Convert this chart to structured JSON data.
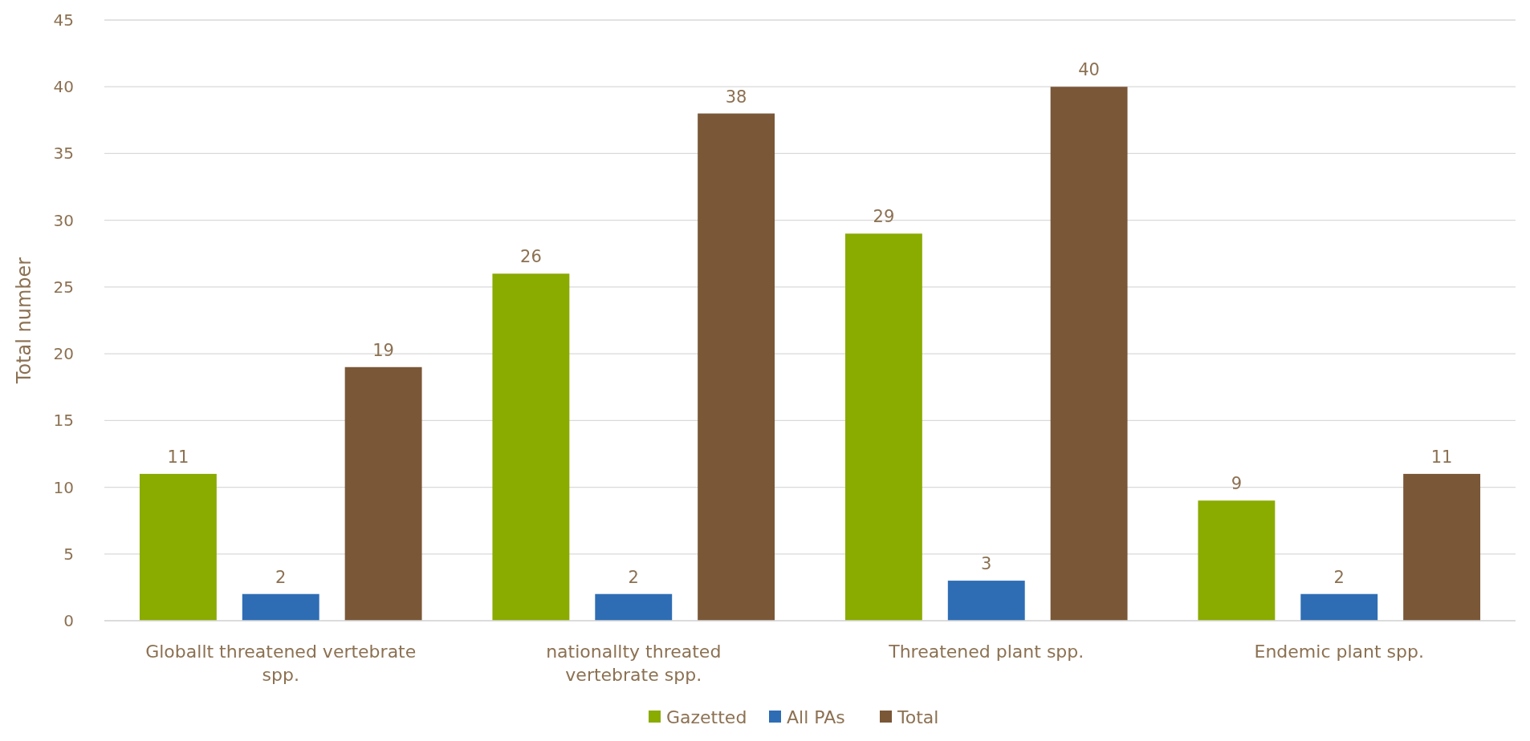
{
  "chart_data": {
    "type": "bar",
    "ylabel": "Total number",
    "categories": [
      "Globallt threatened vertebrate spp.",
      "nationallty threated vertebrate spp.",
      "Threatened plant spp.",
      "Endemic plant spp."
    ],
    "series": [
      {
        "name": "Gazetted",
        "color": "#8aab00",
        "values": [
          11,
          26,
          29,
          9
        ]
      },
      {
        "name": "All PAs",
        "color": "#2e6db4",
        "values": [
          2,
          2,
          3,
          2
        ]
      },
      {
        "name": "Total",
        "color": "#7a5737",
        "values": [
          19,
          38,
          40,
          11
        ]
      }
    ],
    "ylim": [
      0,
      45
    ],
    "yticks": [
      0,
      5,
      10,
      15,
      20,
      25,
      30,
      35,
      40,
      45
    ],
    "grid": "y",
    "legend": "bottom",
    "data_labels": true
  }
}
